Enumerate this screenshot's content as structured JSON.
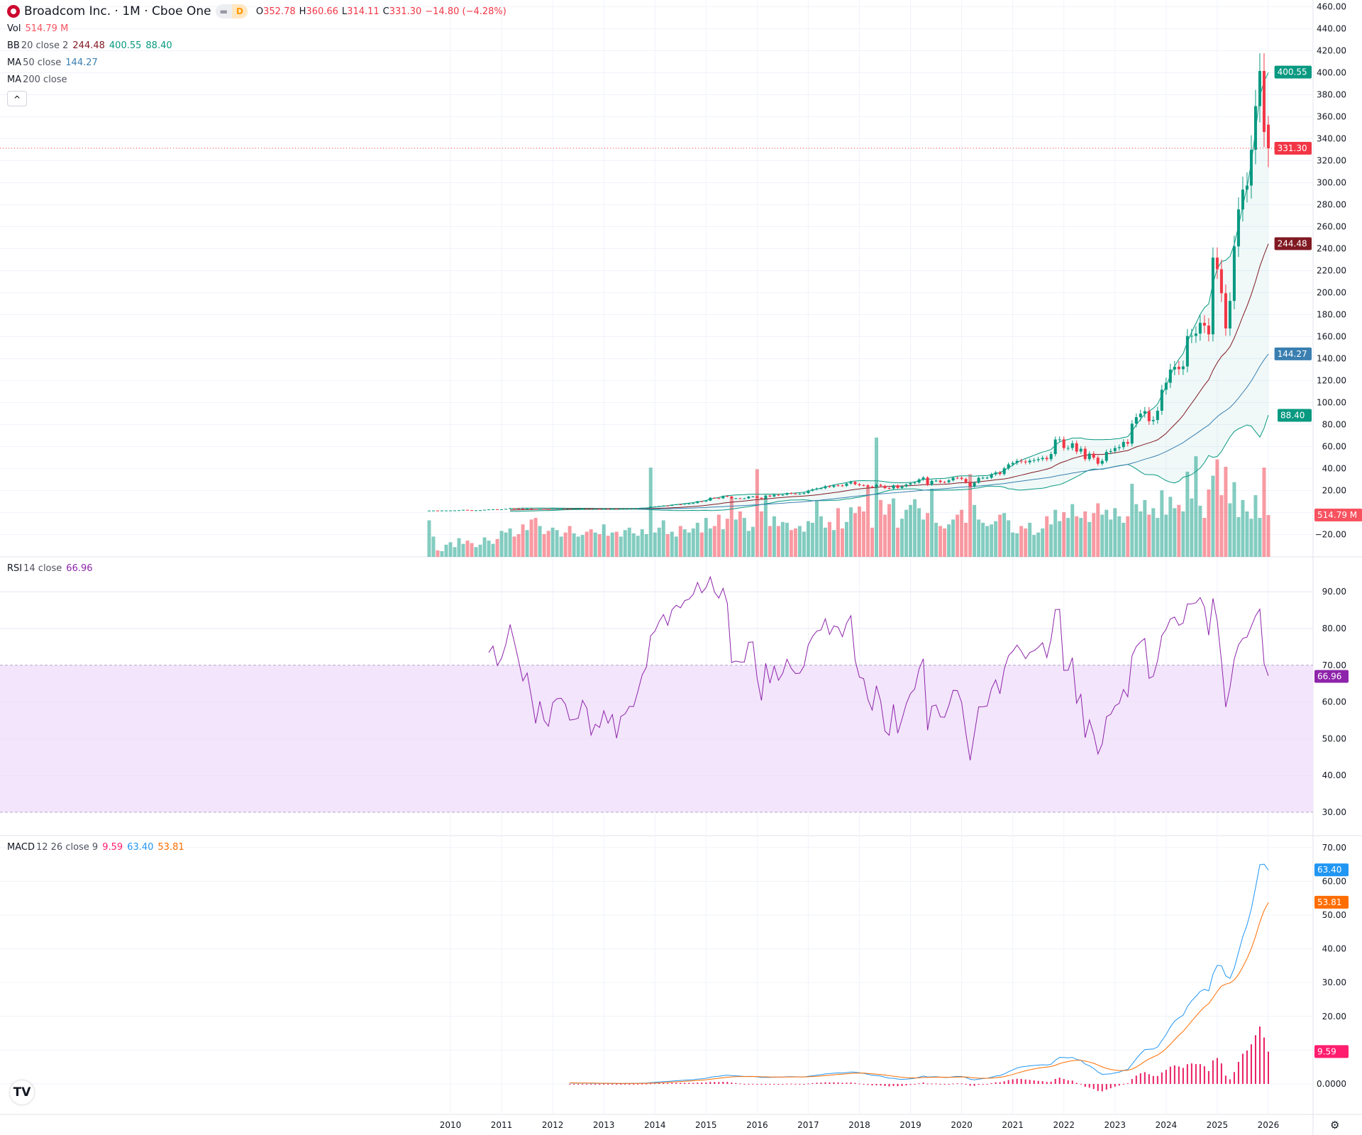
{
  "header": {
    "symbol_name": "Broadcom Inc. · 1M · Cboe One",
    "flag_left": "",
    "flag_right": "D",
    "open_label": "O",
    "open": "352.78",
    "high_label": "H",
    "high": "360.66",
    "low_label": "L",
    "low": "314.11",
    "close_label": "C",
    "close": "331.30",
    "change": "−14.80 (−4.28%)"
  },
  "legends": {
    "vol": {
      "label": "Vol",
      "value": "514.79 M"
    },
    "bb": {
      "label": "BB",
      "params": "20 close 2",
      "basis": "244.48",
      "upper": "400.55",
      "lower": "88.40"
    },
    "ma50": {
      "label": "MA",
      "params": "50 close",
      "value": "144.27"
    },
    "ma200": {
      "label": "MA",
      "params": "200 close"
    },
    "collapse_icon": "chevron-up",
    "rsi": {
      "label": "RSI",
      "params": "14 close",
      "value": "66.96"
    },
    "macd": {
      "label": "MACD",
      "params": "12 26 close 9",
      "hist": "9.59",
      "macd": "63.40",
      "signal": "53.81"
    }
  },
  "price_axis": {
    "ticks": [
      "460.00",
      "440.00",
      "420.00",
      "400.00",
      "380.00",
      "360.00",
      "340.00",
      "320.00",
      "300.00",
      "280.00",
      "260.00",
      "240.00",
      "220.00",
      "200.00",
      "180.00",
      "160.00",
      "140.00",
      "120.00",
      "100.00",
      "80.00",
      "60.00",
      "40.00",
      "20.00",
      "",
      "−20.00"
    ],
    "tick_values": [
      460,
      440,
      420,
      400,
      380,
      360,
      340,
      320,
      300,
      280,
      260,
      240,
      220,
      200,
      180,
      160,
      140,
      120,
      100,
      80,
      60,
      40,
      20,
      0,
      -20
    ],
    "labels": [
      {
        "text": "400.55",
        "value": 400.55,
        "color": "#089981"
      },
      {
        "text": "331.30",
        "value": 331.3,
        "color": "#f23645"
      },
      {
        "text": "244.48",
        "value": 244.48,
        "color": "#801922"
      },
      {
        "text": "144.27",
        "value": 144.27,
        "color": "#3a7fb0"
      },
      {
        "text": "88.40",
        "value": 88.4,
        "color": "#089981"
      }
    ],
    "volume_label": {
      "text": "514.79 M",
      "color": "#f7525f"
    }
  },
  "rsi_axis": {
    "ticks": [
      "90.00",
      "80.00",
      "70.00",
      "60.00",
      "50.00",
      "40.00",
      "30.00"
    ],
    "tick_values": [
      90,
      80,
      70,
      60,
      50,
      40,
      30
    ],
    "label": {
      "text": "66.96",
      "value": 66.96,
      "color": "#8e24aa"
    },
    "upper_band": 70,
    "lower_band": 30
  },
  "macd_axis": {
    "ticks": [
      "70.00",
      "60.00",
      "50.00",
      "40.00",
      "30.00",
      "20.00",
      "",
      "0.0000"
    ],
    "tick_values": [
      70,
      60,
      50,
      40,
      30,
      20,
      10,
      0
    ],
    "labels": [
      {
        "text": "63.40",
        "value": 63.4,
        "color": "#2196f3"
      },
      {
        "text": "53.81",
        "value": 53.81,
        "color": "#ff6d00"
      },
      {
        "text": "9.59",
        "value": 9.59,
        "color": "#ff1d6d"
      }
    ]
  },
  "time_axis": {
    "ticks": [
      "2010",
      "2011",
      "2012",
      "2013",
      "2014",
      "2015",
      "2016",
      "2017",
      "2018",
      "2019",
      "2020",
      "2021",
      "2022",
      "2023",
      "2024",
      "2025",
      "2026"
    ]
  },
  "colors": {
    "up": "#089981",
    "down": "#f23645",
    "bb_band": "#089981",
    "bb_basis": "#801922",
    "ma50": "#3a7fb0",
    "rsi": "#8e24aa",
    "rsi_fill": "#f3e5fc",
    "macd": "#2196f3",
    "signal": "#ff6d00",
    "hist": "#e91e63"
  },
  "chart_data": {
    "type": "candlestick",
    "interval": "1M",
    "start": "2009-08",
    "end": "2026-01",
    "last_bar": {
      "open": 352.78,
      "high": 360.66,
      "low": 314.11,
      "close": 331.3,
      "volume_m": 514.79
    },
    "closes": [
      1.75,
      1.83,
      1.69,
      1.82,
      1.87,
      1.88,
      1.95,
      2.09,
      2.45,
      2.12,
      1.98,
      2.04,
      2.09,
      2.49,
      2.83,
      2.98,
      2.82,
      2.97,
      3.3,
      3.94,
      3.77,
      3.58,
      3.36,
      3.54,
      3.26,
      2.9,
      3.33,
      3.04,
      2.95,
      3.42,
      3.51,
      3.52,
      3.44,
      3.23,
      3.24,
      3.26,
      3.55,
      3.46,
      3.12,
      3.28,
      3.24,
      3.49,
      3.34,
      3.47,
      3.17,
      3.5,
      3.54,
      3.66,
      3.66,
      3.9,
      4.21,
      4.38,
      5.3,
      5.48,
      5.92,
      6.3,
      6.18,
      7.09,
      7.42,
      7.39,
      7.96,
      8.08,
      8.56,
      10.21,
      10.05,
      10.85,
      13.43,
      13.09,
      12.96,
      14.94,
      14.56,
      12.77,
      12.89,
      12.86,
      12.86,
      14.5,
      14.54,
      13.37,
      12.56,
      15.45,
      14.58,
      16.2,
      15.54,
      16.19,
      17.66,
      17.25,
      17.02,
      17.05,
      17.68,
      19.95,
      21.09,
      21.9,
      22.08,
      23.94,
      23.31,
      24.67,
      24.62,
      24.25,
      26.39,
      27.8,
      25.71,
      24.8,
      24.71,
      23.56,
      22.94,
      25.2,
      24.26,
      22.18,
      21.85,
      24.67,
      22.35,
      23.74,
      25.43,
      26.68,
      27.27,
      30.07,
      31.84,
      25.16,
      28.79,
      28.99,
      27.64,
      27.61,
      29.28,
      31.62,
      31.6,
      30.51,
      27.27,
      23.71,
      27.16,
      31.53,
      31.56,
      31.68,
      34.71,
      36.43,
      34.96,
      40.15,
      43.78,
      45.09,
      46.99,
      46.37,
      45.62,
      47.23,
      47.68,
      48.54,
      49.72,
      48.49,
      53.17,
      66.41,
      66.54,
      58.66,
      58.74,
      62.97,
      55.44,
      58.02,
      48.58,
      53.55,
      49.91,
      44.4,
      47.01,
      55.12,
      55.91,
      58.63,
      59.47,
      64.15,
      62.65,
      80.79,
      86.74,
      89.87,
      92.24,
      83.06,
      84.14,
      92.57,
      111.63,
      118.0,
      130.04,
      132.54,
      130.39,
      132.86,
      160.55,
      160.67,
      162.76,
      172.5,
      170.0,
      162.08,
      231.84,
      221.27,
      199.43,
      167.43,
      192.47,
      242.07,
      275.65,
      293.7,
      297.39,
      329.91,
      369.63,
      401.6,
      346.1,
      331.3
    ],
    "volumes_m": [
      450,
      250,
      80,
      70,
      150,
      180,
      120,
      230,
      160,
      200,
      170,
      120,
      150,
      240,
      200,
      160,
      220,
      320,
      300,
      350,
      250,
      280,
      400,
      330,
      460,
      480,
      380,
      280,
      320,
      360,
      330,
      250,
      300,
      380,
      290,
      250,
      270,
      310,
      340,
      300,
      280,
      400,
      260,
      300,
      310,
      250,
      330,
      360,
      290,
      260,
      340,
      280,
      1100,
      300,
      360,
      450,
      280,
      310,
      250,
      380,
      340,
      300,
      350,
      420,
      300,
      480,
      350,
      380,
      520,
      340,
      470,
      720,
      460,
      560,
      480,
      320,
      370,
      1080,
      560,
      720,
      380,
      500,
      380,
      430,
      420,
      330,
      350,
      380,
      310,
      440,
      420,
      700,
      500,
      360,
      430,
      330,
      600,
      350,
      430,
      610,
      540,
      620,
      560,
      870,
      360,
      1470,
      700,
      520,
      650,
      720,
      360,
      470,
      580,
      640,
      710,
      600,
      460,
      540,
      840,
      420,
      380,
      350,
      400,
      460,
      520,
      580,
      420,
      1020,
      640,
      460,
      420,
      380,
      400,
      440,
      520,
      540,
      450,
      300,
      290,
      380,
      350,
      420,
      270,
      300,
      350,
      500,
      400,
      580,
      440,
      550,
      480,
      650,
      500,
      480,
      560,
      430,
      540,
      660,
      520,
      580,
      460,
      600,
      500,
      420,
      500,
      900,
      650,
      560,
      700,
      520,
      600,
      480,
      820,
      520,
      740,
      600,
      640,
      560,
      1050,
      720,
      1240,
      630,
      480,
      830,
      1000,
      1200,
      760,
      1110,
      660,
      920,
      490,
      700,
      560,
      470,
      760,
      480,
      1100,
      515
    ]
  }
}
